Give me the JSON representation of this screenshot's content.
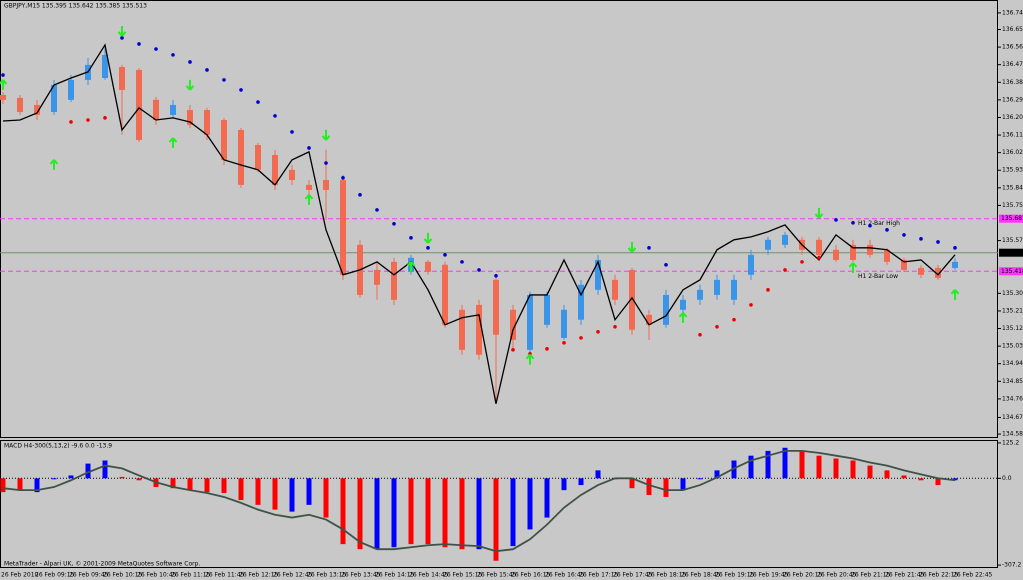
{
  "chart_data": [
    {
      "type": "candlestick",
      "title": "GBPJPY,M15  135.395 135.642 135.385 135.513",
      "categories": [
        "26 Feb 2010",
        null,
        "26 Feb 09:15",
        null,
        "26 Feb 09:45",
        null,
        "26 Feb 10:15",
        null,
        "26 Feb 10:45",
        null,
        "26 Feb 11:15",
        null,
        "26 Feb 11:45",
        null,
        "26 Feb 12:15",
        null,
        "26 Feb 12:45",
        null,
        "26 Feb 13:15",
        null,
        "26 Feb 13:45",
        null,
        "26 Feb 14:15",
        null,
        "26 Feb 14:45",
        null,
        "26 Feb 15:15",
        null,
        "26 Feb 15:45",
        null,
        "26 Feb 16:15",
        null,
        "26 Feb 16:45",
        null,
        "26 Feb 17:15",
        null,
        "26 Feb 17:45",
        null,
        "26 Feb 18:15",
        null,
        "26 Feb 18:45",
        null,
        "26 Feb 19:15",
        null,
        "26 Feb 19:45",
        null,
        "26 Feb 20:15",
        null,
        "26 Feb 20:45",
        null,
        "26 Feb 21:15",
        null,
        "26 Feb 21:45",
        null,
        "26 Feb 22:15",
        null,
        "26 Feb 22:45"
      ],
      "open": [
        136.32,
        136.305,
        136.269,
        136.233,
        136.295,
        136.397,
        136.407,
        136.463,
        136.448,
        136.295,
        136.218,
        136.243,
        136.243,
        136.192,
        136.141,
        136.064,
        136.013,
        135.937,
        135.86,
        135.885,
        135.885,
        135.553,
        135.425,
        135.466,
        135.415,
        135.466,
        135.451,
        135.221,
        135.246,
        135.374,
        135.221,
        135.016,
        135.144,
        135.077,
        135.17,
        135.323,
        135.374,
        135.425,
        135.195,
        135.144,
        135.221,
        135.272,
        135.297,
        135.272,
        135.4,
        135.528,
        135.553,
        135.579,
        135.579,
        135.528,
        135.553,
        135.553,
        135.528,
        135.476,
        135.435,
        135.435,
        135.435
      ],
      "high": [
        136.335,
        136.32,
        136.295,
        136.397,
        136.422,
        136.509,
        136.576,
        136.474,
        136.458,
        136.31,
        136.295,
        136.269,
        136.254,
        136.203,
        136.151,
        136.075,
        136.039,
        135.962,
        135.885,
        136.039,
        135.911,
        135.579,
        135.466,
        135.487,
        135.502,
        135.476,
        135.466,
        135.246,
        135.272,
        135.384,
        135.246,
        135.313,
        135.313,
        135.246,
        135.374,
        135.502,
        135.4,
        135.435,
        135.221,
        135.323,
        135.297,
        135.349,
        135.4,
        135.4,
        135.528,
        135.594,
        135.62,
        135.594,
        135.594,
        135.553,
        135.579,
        135.579,
        135.538,
        135.487,
        135.451,
        135.451,
        135.487
      ],
      "low": [
        136.274,
        136.218,
        136.192,
        136.218,
        136.284,
        136.371,
        136.397,
        136.116,
        136.08,
        136.167,
        136.203,
        136.151,
        136.09,
        135.962,
        135.845,
        135.926,
        135.834,
        135.86,
        135.809,
        135.681,
        135.374,
        135.282,
        135.272,
        135.246,
        135.4,
        135.4,
        135.129,
        134.991,
        134.965,
        134.74,
        135.016,
        134.991,
        135.129,
        135.067,
        135.144,
        135.297,
        135.246,
        135.093,
        135.067,
        135.129,
        135.195,
        135.246,
        135.272,
        135.246,
        135.374,
        135.502,
        135.538,
        135.502,
        135.487,
        135.466,
        135.466,
        135.487,
        135.451,
        135.415,
        135.384,
        135.374,
        135.425
      ],
      "close": [
        136.295,
        136.233,
        136.218,
        136.371,
        136.397,
        136.474,
        136.525,
        136.346,
        136.09,
        136.192,
        136.269,
        136.167,
        136.116,
        135.988,
        135.86,
        135.937,
        135.86,
        135.885,
        135.834,
        135.834,
        135.4,
        135.297,
        135.349,
        135.272,
        135.487,
        135.415,
        135.144,
        135.016,
        134.991,
        135.093,
        135.067,
        135.297,
        135.297,
        135.221,
        135.349,
        135.476,
        135.272,
        135.119,
        135.144,
        135.297,
        135.272,
        135.323,
        135.374,
        135.374,
        135.502,
        135.579,
        135.604,
        135.528,
        135.502,
        135.476,
        135.476,
        135.502,
        135.466,
        135.425,
        135.4,
        135.384,
        135.466
      ],
      "up_color": "#3a94e8",
      "down_color": "#f26a4f",
      "line": {
        "color": "#000000",
        "values": [
          136.187,
          136.192,
          136.228,
          136.371,
          136.407,
          136.438,
          136.576,
          136.141,
          136.254,
          136.192,
          136.203,
          136.182,
          136.116,
          135.988,
          135.962,
          135.937,
          135.86,
          135.988,
          136.029,
          135.63,
          135.4,
          135.425,
          135.466,
          135.4,
          135.466,
          135.323,
          135.144,
          135.18,
          135.195,
          134.74,
          135.119,
          135.297,
          135.297,
          135.476,
          135.297,
          135.466,
          135.17,
          135.282,
          135.144,
          135.19,
          135.323,
          135.374,
          135.528,
          135.579,
          135.594,
          135.62,
          135.655,
          135.553,
          135.476,
          135.604,
          135.538,
          135.538,
          135.528,
          135.466,
          135.476,
          135.4,
          135.502
        ]
      },
      "sar_above": {
        "color": "#0000cc",
        "values": [
          136.422,
          null,
          null,
          null,
          null,
          null,
          null,
          136.612,
          136.581,
          136.555,
          136.525,
          136.489,
          136.448,
          136.397,
          136.346,
          136.284,
          136.213,
          136.131,
          136.049,
          135.972,
          135.896,
          135.809,
          135.732,
          135.661,
          135.589,
          135.538,
          135.502,
          135.466,
          135.425,
          135.395,
          null,
          null,
          null,
          null,
          null,
          null,
          null,
          null,
          135.538,
          135.451,
          null,
          null,
          null,
          null,
          null,
          null,
          null,
          null,
          null,
          135.681,
          135.666,
          135.651,
          135.63,
          135.604,
          135.584,
          135.568,
          135.538
        ]
      },
      "sar_below": {
        "color": "#ee0000",
        "values": [
          null,
          null,
          null,
          null,
          136.182,
          136.192,
          136.203,
          null,
          null,
          null,
          null,
          null,
          null,
          null,
          null,
          null,
          null,
          null,
          null,
          null,
          null,
          null,
          null,
          null,
          null,
          null,
          null,
          null,
          null,
          null,
          135.016,
          134.996,
          135.021,
          135.052,
          135.077,
          135.108,
          135.134,
          null,
          null,
          null,
          null,
          135.093,
          135.134,
          135.17,
          135.246,
          135.323,
          135.425,
          135.466,
          135.487,
          null,
          null,
          null,
          null,
          null,
          null,
          null,
          null
        ]
      },
      "buy_arrows": {
        "color": "#22ee22",
        "values": [
          136.397,
          null,
          null,
          135.988,
          null,
          null,
          null,
          null,
          null,
          null,
          136.1,
          null,
          null,
          null,
          null,
          null,
          null,
          null,
          135.809,
          null,
          null,
          null,
          null,
          null,
          135.466,
          null,
          null,
          null,
          null,
          null,
          null,
          134.991,
          null,
          null,
          null,
          null,
          null,
          null,
          null,
          null,
          135.205,
          null,
          null,
          null,
          null,
          null,
          null,
          null,
          null,
          null,
          135.461,
          null,
          null,
          null,
          null,
          null,
          135.323
        ]
      },
      "sell_arrows": {
        "color": "#22ee22",
        "values": [
          null,
          null,
          null,
          null,
          null,
          null,
          null,
          136.622,
          null,
          null,
          null,
          136.346,
          null,
          null,
          null,
          null,
          null,
          null,
          null,
          136.09,
          null,
          null,
          null,
          null,
          null,
          135.563,
          null,
          null,
          null,
          null,
          null,
          null,
          null,
          null,
          null,
          null,
          null,
          135.517,
          null,
          null,
          null,
          null,
          null,
          null,
          null,
          null,
          null,
          null,
          135.691,
          null,
          null,
          null,
          null,
          null,
          null,
          null,
          null
        ]
      },
      "hlines": [
        {
          "value": 135.687,
          "color": "#ff33ff",
          "dashed": true,
          "text": "H1 2-Bar High"
        },
        {
          "value": 135.513,
          "color": "#6f8f6f",
          "dashed": false,
          "tag_color": "#000000"
        },
        {
          "value": 135.418,
          "color": "#ff33ff",
          "dashed": true,
          "text": "H1 2-Bar Low"
        }
      ],
      "ylim": [
        134.57,
        136.806
      ],
      "yticks": [
        {
          "value": 136.74,
          "label": "136.740"
        },
        136.655,
        136.565,
        136.475,
        136.385,
        136.295,
        136.205,
        136.115,
        136.025,
        135.935,
        135.845,
        135.755,
        135.575,
        135.305,
        135.215,
        135.125,
        135.035,
        134.945,
        134.855,
        134.765,
        {
          "value": 134.67,
          "label": "134.670"
        },
        134.585
      ]
    },
    {
      "type": "macd",
      "title": "MACD H4-300(5,13,2) -9.6 0.0 -13.9",
      "histogram": {
        "values": [
          -49,
          -42,
          -49,
          -2,
          10,
          52,
          63,
          5,
          -7,
          -31,
          -35,
          -42,
          -49,
          -52,
          -77,
          -94,
          -111,
          -118,
          -94,
          -139,
          -233,
          -251,
          -251,
          -244,
          -233,
          -233,
          -244,
          -251,
          -251,
          -292,
          -240,
          -181,
          -139,
          -42,
          -24,
          28,
          -3,
          -35,
          -59,
          -66,
          -42,
          -3,
          28,
          63,
          80,
          97,
          108,
          97,
          80,
          70,
          63,
          45,
          28,
          10,
          -7,
          -24,
          -7
        ],
        "colors": [
          "#ff0000",
          "#ff0000",
          "#0000ff",
          "#0000ff",
          "#0000ff",
          "#0000ff",
          "#0000ff",
          "#ff0000",
          "#ff0000",
          "#ff0000",
          "#ff0000",
          "#ff0000",
          "#ff0000",
          "#ff0000",
          "#ff0000",
          "#ff0000",
          "#ff0000",
          "#0000ff",
          "#0000ff",
          "#ff0000",
          "#ff0000",
          "#ff0000",
          "#0000ff",
          "#0000ff",
          "#ff0000",
          "#ff0000",
          "#ff0000",
          "#ff0000",
          "#0000ff",
          "#ff0000",
          "#0000ff",
          "#0000ff",
          "#0000ff",
          "#0000ff",
          "#0000ff",
          "#0000ff",
          "#ff0000",
          "#ff0000",
          "#ff0000",
          "#ff0000",
          "#0000ff",
          "#0000ff",
          "#0000ff",
          "#0000ff",
          "#0000ff",
          "#0000ff",
          "#0000ff",
          "#ff0000",
          "#ff0000",
          "#ff0000",
          "#ff0000",
          "#ff0000",
          "#ff0000",
          "#ff0000",
          "#ff0000",
          "#ff0000",
          "#0000ff"
        ]
      },
      "signal": {
        "color": "#3f5247",
        "values": [
          -35,
          -42,
          -42,
          -31,
          -7,
          21,
          45,
          35,
          10,
          -14,
          -31,
          -42,
          -52,
          -66,
          -87,
          -111,
          -129,
          -139,
          -129,
          -146,
          -181,
          -226,
          -251,
          -251,
          -244,
          -237,
          -233,
          -237,
          -240,
          -258,
          -251,
          -216,
          -164,
          -104,
          -59,
          -24,
          0,
          0,
          -24,
          -42,
          -42,
          -24,
          3,
          35,
          63,
          80,
          97,
          97,
          90,
          80,
          70,
          56,
          45,
          28,
          14,
          0,
          -7
        ]
      },
      "ylim": [
        -314,
        132
      ],
      "yticks": [
        125.2,
        {
          "value": 0,
          "label": "0.0"
        },
        -307.2
      ]
    }
  ],
  "footer": "MetaTrader - Alpari UK, © 2001-2009 MetaQuotes Software Corp."
}
